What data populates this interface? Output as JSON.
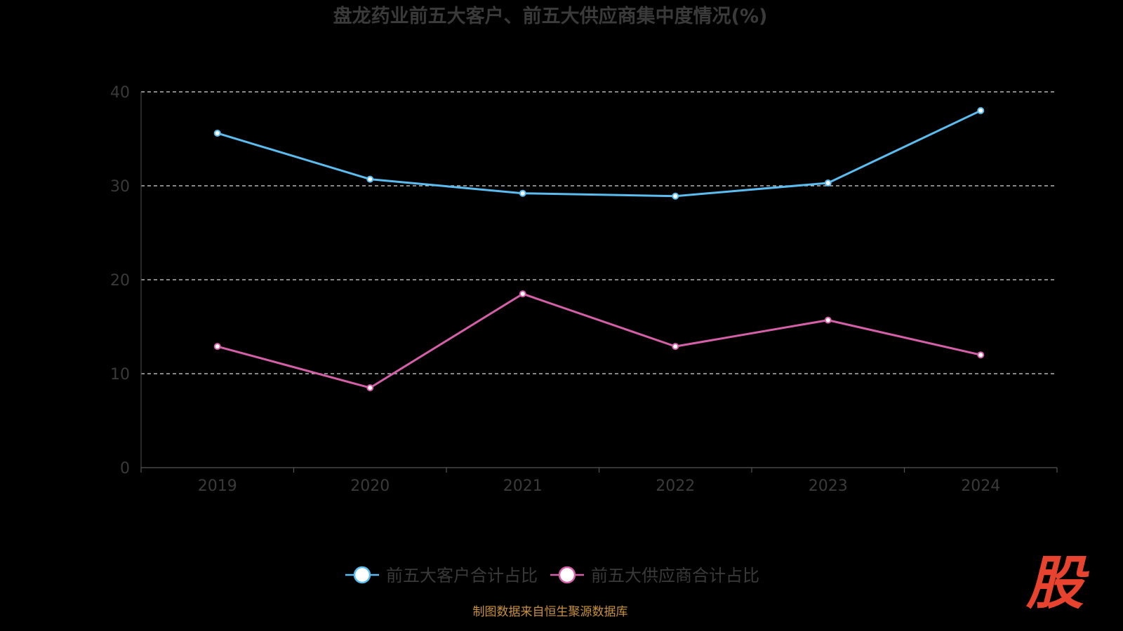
{
  "chart_data": {
    "type": "line",
    "title": "盘龙药业前五大客户、前五大供应商集中度情况(%)",
    "categories": [
      "2019",
      "2020",
      "2021",
      "2022",
      "2023",
      "2024"
    ],
    "ylim": [
      0,
      40
    ],
    "yticks": [
      "0",
      "10",
      "20",
      "30",
      "40"
    ],
    "grid": true,
    "legend_position": "bottom",
    "series": [
      {
        "name": "前五大客户合计占比",
        "color": "#5bbcf0",
        "values": [
          35.6,
          30.7,
          29.2,
          28.9,
          30.3,
          38.0
        ]
      },
      {
        "name": "前五大供应商合计占比",
        "color": "#d660a8",
        "values": [
          12.9,
          8.5,
          18.5,
          12.9,
          15.7,
          12.0
        ]
      }
    ]
  },
  "source_text": "制图数据来自恒生聚源数据库",
  "watermark": {
    "text": "股",
    "color": "#e8432e"
  }
}
